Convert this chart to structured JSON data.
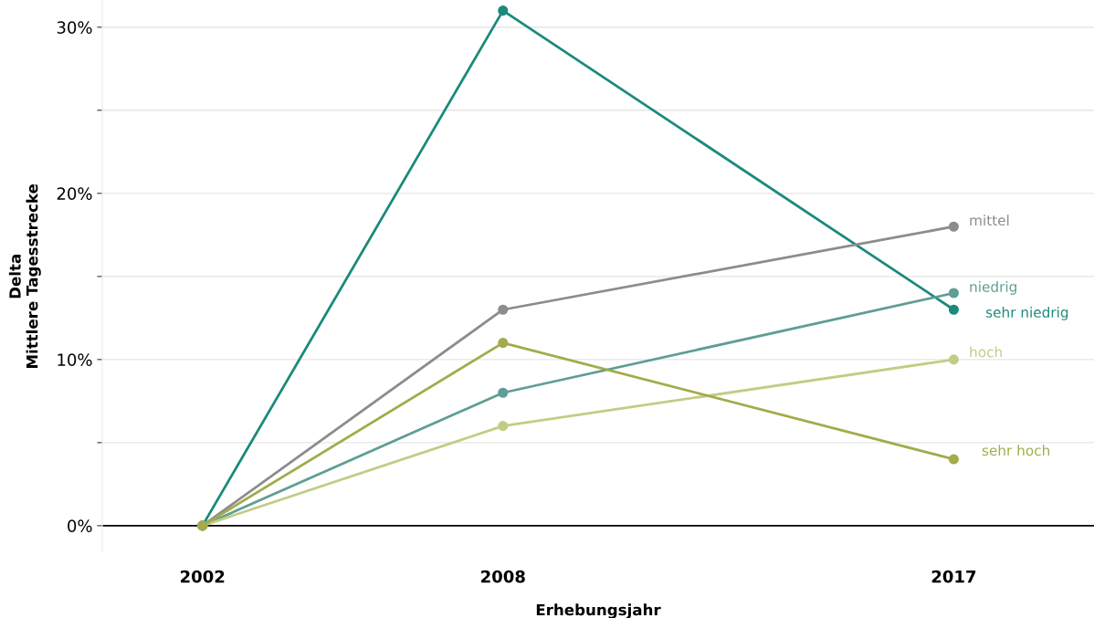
{
  "chart_data": {
    "type": "line",
    "xlabel": "Erhebungsjahr",
    "ylabel": "Delta\nMittlere Tagesstrecke",
    "x": [
      2002,
      2008,
      2017
    ],
    "series": [
      {
        "name": "sehr niedrig",
        "color": "#1b8a7a",
        "values": [
          0,
          31,
          13
        ]
      },
      {
        "name": "mittel",
        "color": "#8c8c8c",
        "values": [
          0,
          13,
          18
        ]
      },
      {
        "name": "niedrig",
        "color": "#5e9e94",
        "values": [
          0,
          8,
          14
        ]
      },
      {
        "name": "hoch",
        "color": "#c2cc85",
        "values": [
          0,
          6,
          10
        ]
      },
      {
        "name": "sehr hoch",
        "color": "#a3ab4a",
        "values": [
          0,
          11,
          4
        ]
      }
    ],
    "xlim": [
      2000,
      2019.8
    ],
    "xticks": [
      2002,
      2008,
      2017
    ],
    "yticks": [
      {
        "value": 0,
        "label": "0%"
      },
      {
        "value": 5,
        "label": null
      },
      {
        "value": 10,
        "label": "10%"
      },
      {
        "value": 15,
        "label": null
      },
      {
        "value": 20,
        "label": "20%"
      },
      {
        "value": 25,
        "label": null
      },
      {
        "value": 30,
        "label": "30%"
      }
    ],
    "ylim": [
      -1.6,
      31.6
    ],
    "ref_lines": [
      {
        "axis": "y",
        "value": 0,
        "color": "#000000"
      }
    ],
    "grid": "y",
    "marker": "circle",
    "line_style": "solid",
    "legend": false
  }
}
